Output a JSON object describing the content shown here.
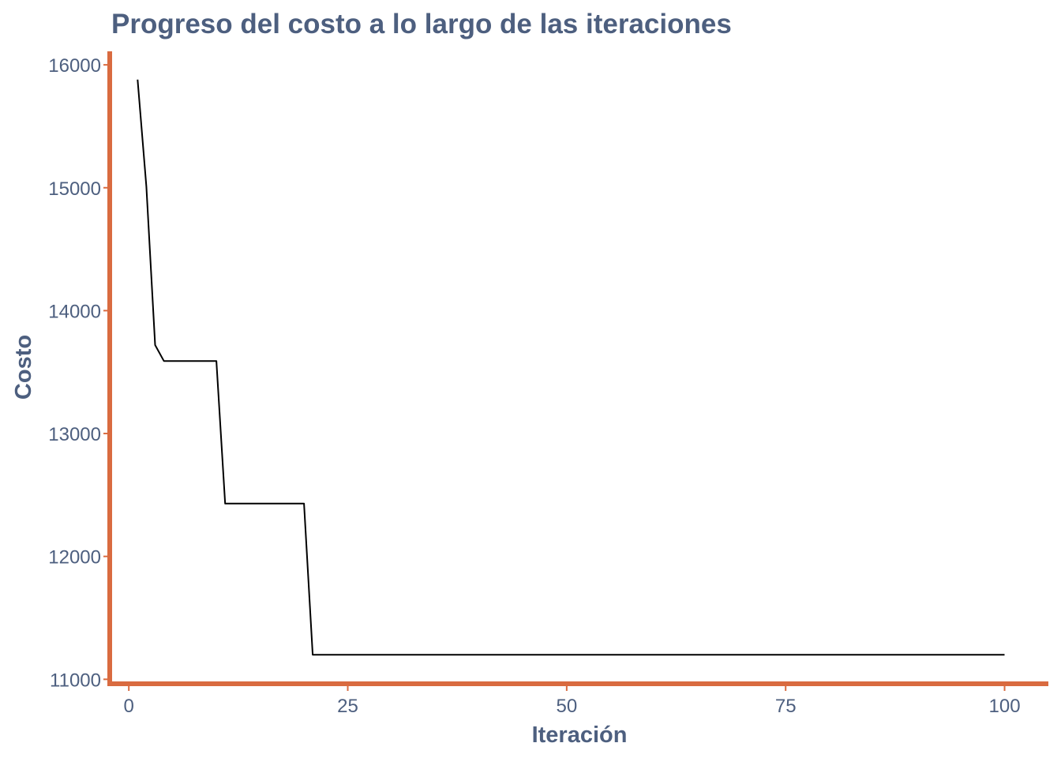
{
  "colors": {
    "text": "#4d5f7f",
    "axis_line": "#d96b40",
    "series_line": "#000000",
    "background": "#ffffff"
  },
  "chart_data": {
    "type": "line",
    "title": "Progreso del costo a lo largo de las iteraciones",
    "xlabel": "Iteración",
    "ylabel": "Costo",
    "xlim": [
      -2,
      105
    ],
    "ylim": [
      10970,
      16110
    ],
    "x_ticks": [
      0,
      25,
      50,
      75,
      100
    ],
    "y_ticks": [
      11000,
      12000,
      13000,
      14000,
      15000,
      16000
    ],
    "x_tick_labels": [
      "0",
      "25",
      "50",
      "75",
      "100"
    ],
    "y_tick_labels": [
      "11000",
      "12000",
      "13000",
      "14000",
      "15000",
      "16000"
    ],
    "grid": false,
    "legend": "none",
    "series": [
      {
        "x": [
          1,
          2,
          3,
          4,
          5,
          6,
          7,
          8,
          9,
          10,
          11,
          12,
          13,
          14,
          15,
          16,
          17,
          18,
          19,
          20,
          21,
          22,
          30,
          40,
          50,
          60,
          70,
          80,
          90,
          100
        ],
        "values": [
          15880,
          15010,
          13720,
          13590,
          13590,
          13590,
          13590,
          13590,
          13590,
          13590,
          12430,
          12430,
          12430,
          12430,
          12430,
          12430,
          12430,
          12430,
          12430,
          12430,
          11200,
          11200,
          11200,
          11200,
          11200,
          11200,
          11200,
          11200,
          11200,
          11200
        ]
      }
    ]
  }
}
